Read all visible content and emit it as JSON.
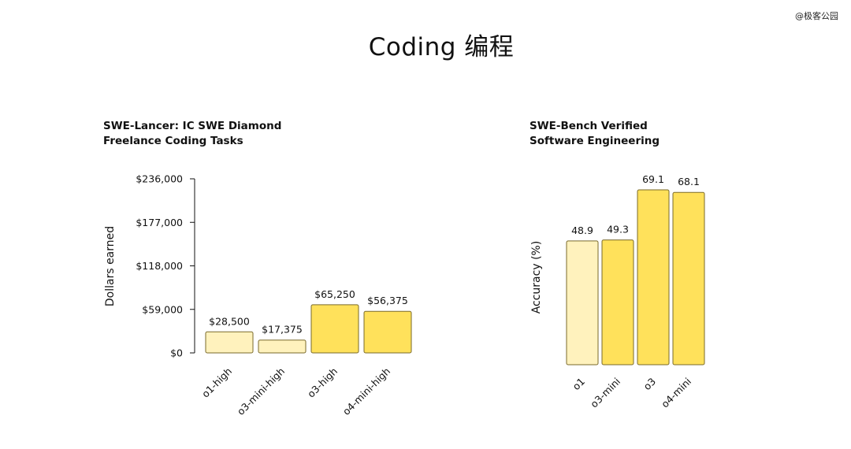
{
  "page": {
    "title": "Coding 编程",
    "watermark": "@极客公园"
  },
  "colors": {
    "light_bar": "#FFF2BD",
    "bar": "#FFE15B",
    "bar_stroke": "#7A6A2A",
    "axis": "#111111"
  },
  "chart_data": [
    {
      "type": "bar",
      "title_lines": [
        "SWE-Lancer: IC SWE Diamond",
        "Freelance Coding Tasks"
      ],
      "xlabel": "",
      "ylabel": "Dollars earned",
      "categories": [
        "o1-high",
        "o3-mini-high",
        "o3-high",
        "o4-mini-high"
      ],
      "values": [
        28500,
        17375,
        65250,
        56375
      ],
      "value_labels": [
        "$28,500",
        "$17,375",
        "$65,250",
        "$56,375"
      ],
      "highlight": [
        false,
        false,
        true,
        true
      ],
      "ylim": [
        0,
        236000
      ],
      "yticks": [
        0,
        59000,
        118000,
        177000,
        236000
      ],
      "ytick_labels": [
        "$0",
        "$59,000",
        "$118,000",
        "$177,000",
        "$236,000"
      ],
      "grid": false
    },
    {
      "type": "bar",
      "title_lines": [
        "SWE-Bench Verified",
        "Software Engineering"
      ],
      "xlabel": "",
      "ylabel": "Accuracy (%)",
      "categories": [
        "o1",
        "o3-mini",
        "o3",
        "o4-mini"
      ],
      "values": [
        48.9,
        49.3,
        69.1,
        68.1
      ],
      "value_labels": [
        "48.9",
        "49.3",
        "69.1",
        "68.1"
      ],
      "highlight": [
        false,
        true,
        true,
        true
      ],
      "ylim": [
        0,
        70
      ],
      "grid": false
    }
  ]
}
